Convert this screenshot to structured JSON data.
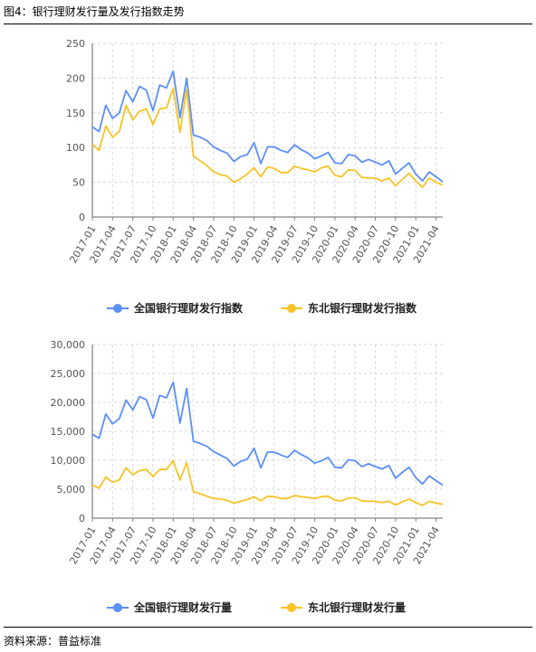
{
  "figure": {
    "title": "图4：银行理财发行量及发行指数走势",
    "source": "资料来源：普益标准"
  },
  "x_labels": [
    "2017-01",
    "2017-04",
    "2017-07",
    "2017-10",
    "2018-01",
    "2018-04",
    "2018-07",
    "2018-10",
    "2019-01",
    "2019-04",
    "2019-07",
    "2019-10",
    "2020-01",
    "2020-04",
    "2020-07",
    "2020-10",
    "2021-01",
    "2021-04"
  ],
  "chart_data": [
    {
      "type": "line",
      "ylim": [
        0,
        250
      ],
      "yticks": [
        "0",
        "50",
        "100",
        "150",
        "200",
        "250"
      ],
      "yticks_values": [
        0,
        50,
        100,
        150,
        200,
        250
      ],
      "grid": true,
      "legend_position": "bottom",
      "x": [
        "2017-01",
        "2017-02",
        "2017-03",
        "2017-04",
        "2017-05",
        "2017-06",
        "2017-07",
        "2017-08",
        "2017-09",
        "2017-10",
        "2017-11",
        "2017-12",
        "2018-01",
        "2018-02",
        "2018-03",
        "2018-04",
        "2018-05",
        "2018-06",
        "2018-07",
        "2018-08",
        "2018-09",
        "2018-10",
        "2018-11",
        "2018-12",
        "2019-01",
        "2019-02",
        "2019-03",
        "2019-04",
        "2019-05",
        "2019-06",
        "2019-07",
        "2019-08",
        "2019-09",
        "2019-10",
        "2019-11",
        "2019-12",
        "2020-01",
        "2020-02",
        "2020-03",
        "2020-04",
        "2020-05",
        "2020-06",
        "2020-07",
        "2020-08",
        "2020-09",
        "2020-10",
        "2020-11",
        "2020-12",
        "2021-01",
        "2021-02",
        "2021-03",
        "2021-04",
        "2021-05"
      ],
      "series": [
        {
          "name": "全国银行理财发行指数",
          "color": "#5b8ff9",
          "values": [
            130,
            123,
            161,
            142,
            150,
            182,
            166,
            188,
            183,
            153,
            190,
            186,
            210,
            143,
            200,
            118,
            115,
            110,
            101,
            96,
            92,
            80,
            87,
            90,
            107,
            77,
            101,
            101,
            96,
            93,
            104,
            97,
            92,
            84,
            88,
            93,
            78,
            77,
            90,
            88,
            79,
            83,
            79,
            75,
            81,
            62,
            70,
            78,
            62,
            52,
            65,
            58,
            51
          ]
        },
        {
          "name": "东北银行理财发行指数",
          "color": "#f8c326",
          "values": [
            105,
            96,
            131,
            115,
            123,
            161,
            140,
            152,
            156,
            133,
            156,
            157,
            185,
            122,
            184,
            88,
            81,
            74,
            65,
            61,
            59,
            50,
            55,
            62,
            71,
            58,
            72,
            70,
            64,
            64,
            73,
            70,
            68,
            65,
            71,
            73,
            60,
            58,
            68,
            67,
            57,
            56,
            56,
            52,
            56,
            45,
            54,
            63,
            52,
            43,
            56,
            50,
            46
          ]
        }
      ]
    },
    {
      "type": "line",
      "ylim": [
        0,
        30000
      ],
      "yticks": [
        "0",
        "5,000",
        "10,000",
        "15,000",
        "20,000",
        "25,000",
        "30,000"
      ],
      "yticks_values": [
        0,
        5000,
        10000,
        15000,
        20000,
        25000,
        30000
      ],
      "grid": true,
      "legend_position": "bottom",
      "x": [
        "2017-01",
        "2017-02",
        "2017-03",
        "2017-04",
        "2017-05",
        "2017-06",
        "2017-07",
        "2017-08",
        "2017-09",
        "2017-10",
        "2017-11",
        "2017-12",
        "2018-01",
        "2018-02",
        "2018-03",
        "2018-04",
        "2018-05",
        "2018-06",
        "2018-07",
        "2018-08",
        "2018-09",
        "2018-10",
        "2018-11",
        "2018-12",
        "2019-01",
        "2019-02",
        "2019-03",
        "2019-04",
        "2019-05",
        "2019-06",
        "2019-07",
        "2019-08",
        "2019-09",
        "2019-10",
        "2019-11",
        "2019-12",
        "2020-01",
        "2020-02",
        "2020-03",
        "2020-04",
        "2020-05",
        "2020-06",
        "2020-07",
        "2020-08",
        "2020-09",
        "2020-10",
        "2020-11",
        "2020-12",
        "2021-01",
        "2021-02",
        "2021-03",
        "2021-04",
        "2021-05"
      ],
      "series": [
        {
          "name": "全国银行理财发行量",
          "color": "#5b8ff9",
          "values": [
            14500,
            13800,
            18000,
            16300,
            17200,
            20400,
            18700,
            21000,
            20500,
            17300,
            21200,
            20800,
            23500,
            16400,
            22400,
            13300,
            12900,
            12400,
            11500,
            10900,
            10300,
            9000,
            9800,
            10200,
            12100,
            8700,
            11400,
            11400,
            10900,
            10500,
            11700,
            11000,
            10400,
            9500,
            9900,
            10500,
            8800,
            8700,
            10100,
            9900,
            8900,
            9400,
            8900,
            8500,
            9100,
            6900,
            7900,
            8800,
            7000,
            5900,
            7300,
            6500,
            5700
          ]
        },
        {
          "name": "东北银行理财发行量",
          "color": "#f8c326",
          "values": [
            5700,
            5200,
            7100,
            6200,
            6600,
            8700,
            7500,
            8200,
            8400,
            7200,
            8400,
            8400,
            9900,
            6600,
            9600,
            4600,
            4200,
            3800,
            3400,
            3300,
            3100,
            2600,
            2900,
            3200,
            3700,
            3000,
            3800,
            3700,
            3400,
            3400,
            3900,
            3700,
            3600,
            3400,
            3700,
            3800,
            3100,
            3000,
            3500,
            3500,
            3000,
            2900,
            2900,
            2700,
            2900,
            2300,
            2800,
            3300,
            2700,
            2200,
            2900,
            2600,
            2400
          ]
        }
      ]
    }
  ]
}
